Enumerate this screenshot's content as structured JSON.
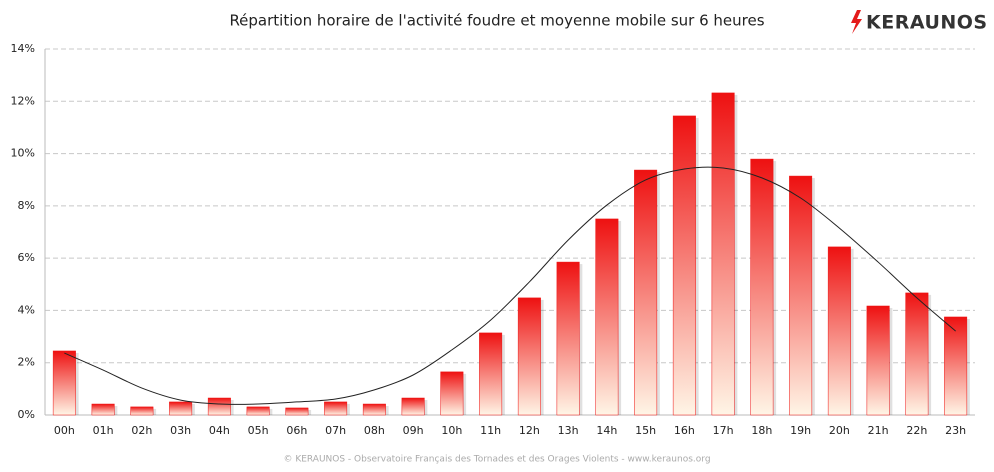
{
  "chart_data": {
    "type": "bar",
    "title": "Répartition horaire de l'activité foudre et moyenne mobile sur 6 heures",
    "brand": "KERAUNOS",
    "footer": "© KERAUNOS - Observatoire Français des Tornades et des Orages Violents - www.keraunos.org",
    "categories": [
      "00h",
      "01h",
      "02h",
      "03h",
      "04h",
      "05h",
      "06h",
      "07h",
      "08h",
      "09h",
      "10h",
      "11h",
      "12h",
      "13h",
      "14h",
      "15h",
      "16h",
      "17h",
      "18h",
      "19h",
      "20h",
      "21h",
      "22h",
      "23h"
    ],
    "series": [
      {
        "name": "Répartition horaire",
        "type": "bar",
        "color": "#ee1111",
        "values": [
          2.45,
          0.42,
          0.31,
          0.5,
          0.65,
          0.31,
          0.27,
          0.5,
          0.42,
          0.65,
          1.65,
          3.14,
          4.48,
          5.85,
          7.5,
          9.37,
          11.44,
          12.32,
          9.79,
          9.14,
          6.43,
          4.17,
          4.67,
          3.75
        ]
      },
      {
        "name": "Moyenne mobile sur 6 heures",
        "type": "line",
        "color": "#222222",
        "values": [
          2.37,
          1.72,
          1.03,
          0.57,
          0.42,
          0.42,
          0.5,
          0.61,
          0.96,
          1.53,
          2.49,
          3.63,
          5.09,
          6.69,
          8.03,
          8.99,
          9.41,
          9.45,
          9.07,
          8.3,
          7.15,
          5.85,
          4.48,
          3.21
        ]
      }
    ],
    "ylim": [
      0,
      14
    ],
    "yticks": [
      {
        "value": 0,
        "label": "0%"
      },
      {
        "value": 2,
        "label": "2%"
      },
      {
        "value": 4,
        "label": "4%"
      },
      {
        "value": 6,
        "label": "6%"
      },
      {
        "value": 8,
        "label": "8%"
      },
      {
        "value": 10,
        "label": "10%"
      },
      {
        "value": 12,
        "label": "12%"
      },
      {
        "value": 14,
        "label": "14%"
      }
    ],
    "grid": true
  }
}
